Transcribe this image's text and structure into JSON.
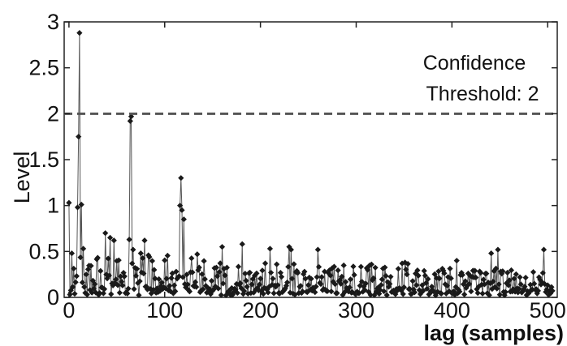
{
  "chart_data": {
    "type": "scatter",
    "title": "",
    "xlabel": "lag (samples)",
    "ylabel": "Level",
    "xlim": [
      -5,
      510
    ],
    "ylim": [
      0,
      3
    ],
    "xticks": [
      0,
      100,
      200,
      300,
      400,
      500
    ],
    "yticks": [
      0,
      0.5,
      1,
      1.5,
      2,
      2.5,
      3
    ],
    "x_tick_labels": [
      "0",
      "100",
      "200",
      "300",
      "400",
      "500"
    ],
    "y_tick_labels": [
      "0",
      "0.5",
      "1",
      "1.5",
      "2",
      "2.5",
      "3"
    ],
    "grid": false,
    "legend": "none",
    "marker": "diamond",
    "threshold": {
      "value": 2,
      "style": "dashed",
      "label_line1": "Confidence",
      "label_line2": "Threshold: 2"
    },
    "peaks": [
      {
        "x": 0,
        "y": 1.03
      },
      {
        "x": 3,
        "y": 0.48
      },
      {
        "x": 9,
        "y": 0.98
      },
      {
        "x": 10,
        "y": 1.75
      },
      {
        "x": 11,
        "y": 2.88
      },
      {
        "x": 13,
        "y": 1.01
      },
      {
        "x": 15,
        "y": 0.53
      },
      {
        "x": 38,
        "y": 0.7
      },
      {
        "x": 43,
        "y": 0.65
      },
      {
        "x": 47,
        "y": 0.62
      },
      {
        "x": 63,
        "y": 0.63
      },
      {
        "x": 64,
        "y": 1.92
      },
      {
        "x": 65,
        "y": 1.97
      },
      {
        "x": 67,
        "y": 0.52
      },
      {
        "x": 75,
        "y": 0.48
      },
      {
        "x": 79,
        "y": 0.62
      },
      {
        "x": 116,
        "y": 1.0
      },
      {
        "x": 117,
        "y": 1.3
      },
      {
        "x": 118,
        "y": 0.95
      },
      {
        "x": 120,
        "y": 0.85
      },
      {
        "x": 134,
        "y": 0.47
      },
      {
        "x": 160,
        "y": 0.55
      },
      {
        "x": 181,
        "y": 0.58
      },
      {
        "x": 210,
        "y": 0.53
      },
      {
        "x": 230,
        "y": 0.55
      },
      {
        "x": 232,
        "y": 0.52
      },
      {
        "x": 260,
        "y": 0.52
      },
      {
        "x": 405,
        "y": 0.4
      },
      {
        "x": 441,
        "y": 0.48
      },
      {
        "x": 448,
        "y": 0.52
      },
      {
        "x": 496,
        "y": 0.52
      }
    ]
  }
}
